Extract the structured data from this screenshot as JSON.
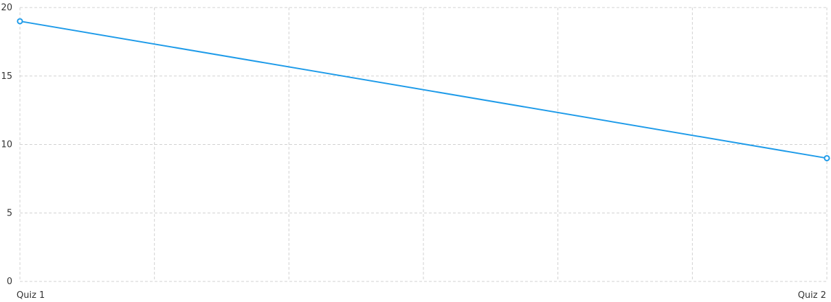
{
  "chart_data": {
    "type": "line",
    "categories": [
      "Quiz 1",
      "Quiz 2"
    ],
    "series": [
      {
        "values": [
          19,
          9
        ],
        "color": "#1e9be9"
      }
    ],
    "ylim": [
      0,
      20
    ],
    "y_ticks": [
      0,
      5,
      10,
      15,
      20
    ],
    "x_grid_divisions": 6,
    "grid": true,
    "grid_style": "dashed",
    "grid_color": "#d0d0d0"
  }
}
